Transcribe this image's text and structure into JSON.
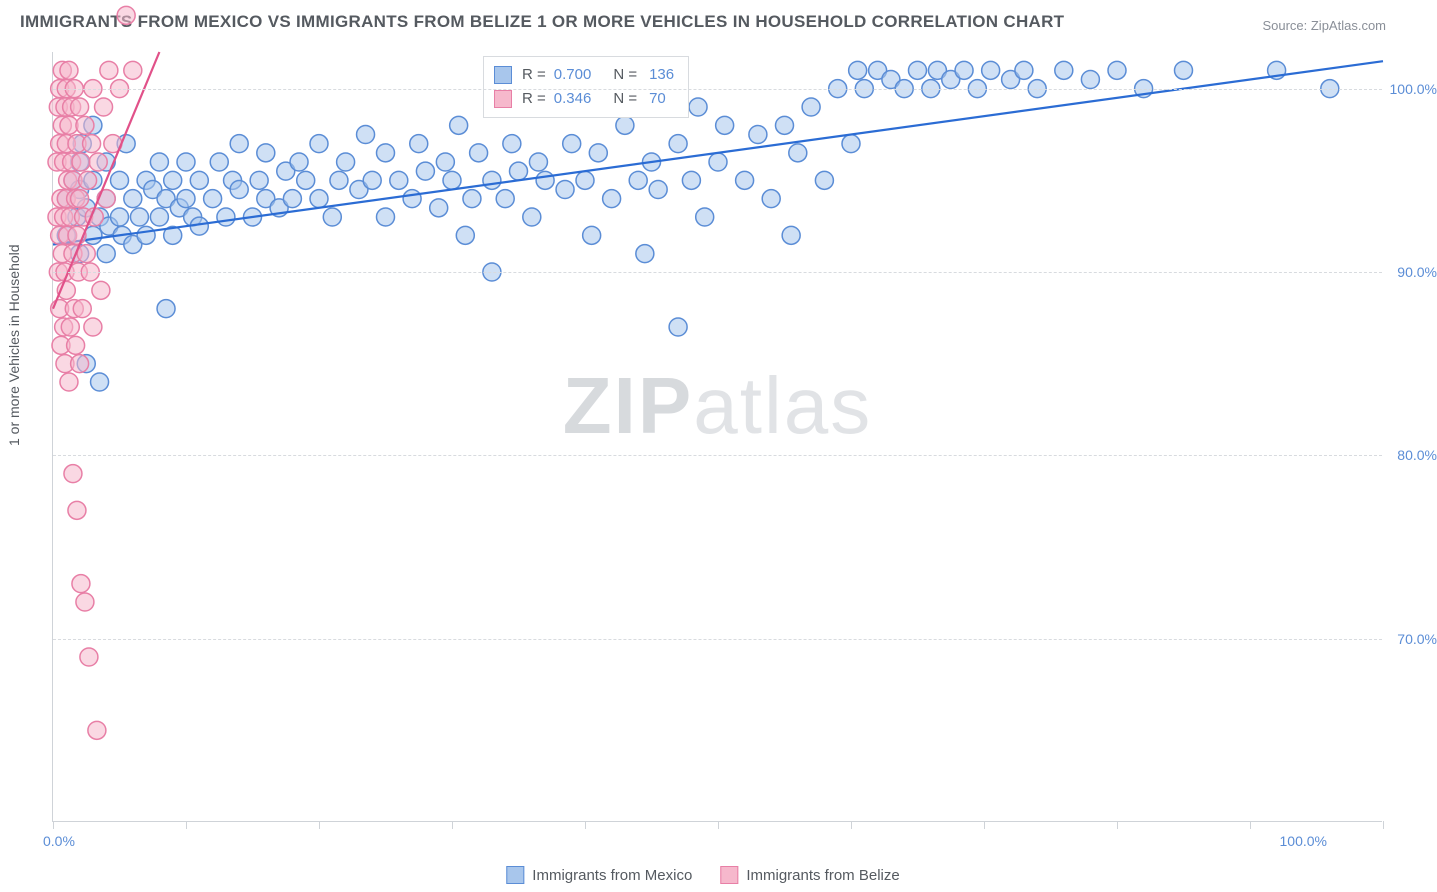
{
  "title": "IMMIGRANTS FROM MEXICO VS IMMIGRANTS FROM BELIZE 1 OR MORE VEHICLES IN HOUSEHOLD CORRELATION CHART",
  "source": "Source: ZipAtlas.com",
  "watermark_a": "ZIP",
  "watermark_b": "atlas",
  "chart": {
    "type": "scatter",
    "background_color": "#ffffff",
    "grid_color": "#d8dbdf",
    "axis_color": "#cfd3d8",
    "y_axis_title": "1 or more Vehicles in Household",
    "xlim": [
      0,
      100
    ],
    "ylim": [
      60,
      102
    ],
    "x_tick_positions": [
      0,
      10,
      20,
      30,
      40,
      50,
      60,
      70,
      80,
      90,
      100
    ],
    "x_labels": {
      "min": "0.0%",
      "max": "100.0%"
    },
    "y_ticks": [
      {
        "v": 70,
        "label": "70.0%"
      },
      {
        "v": 80,
        "label": "80.0%"
      },
      {
        "v": 90,
        "label": "90.0%"
      },
      {
        "v": 100,
        "label": "100.0%"
      }
    ],
    "marker_radius": 9,
    "marker_stroke_width": 1.5,
    "trend_line_width": 2.2,
    "series": [
      {
        "name": "Immigrants from Mexico",
        "fill": "#a8c6ec",
        "stroke": "#5b8dd6",
        "fill_opacity": 0.55,
        "r_value": "0.700",
        "n_value": "136",
        "trend": {
          "x1": 0,
          "y1": 91.5,
          "x2": 100,
          "y2": 101.5,
          "color": "#2b6cd4"
        },
        "points": [
          [
            1,
            92
          ],
          [
            1,
            94
          ],
          [
            1.5,
            95
          ],
          [
            1.8,
            93
          ],
          [
            2,
            91
          ],
          [
            2,
            94.5
          ],
          [
            2,
            96
          ],
          [
            2.2,
            97
          ],
          [
            2.5,
            93.5
          ],
          [
            2.5,
            85
          ],
          [
            3,
            92
          ],
          [
            3,
            95
          ],
          [
            3,
            98
          ],
          [
            3.5,
            84
          ],
          [
            3.5,
            93
          ],
          [
            4,
            91
          ],
          [
            4,
            94
          ],
          [
            4,
            96
          ],
          [
            4.2,
            92.5
          ],
          [
            5,
            93
          ],
          [
            5,
            95
          ],
          [
            5.2,
            92
          ],
          [
            5.5,
            97
          ],
          [
            6,
            94
          ],
          [
            6,
            91.5
          ],
          [
            6.5,
            93
          ],
          [
            7,
            95
          ],
          [
            7,
            92
          ],
          [
            7.5,
            94.5
          ],
          [
            8,
            93
          ],
          [
            8,
            96
          ],
          [
            8.5,
            88
          ],
          [
            8.5,
            94
          ],
          [
            9,
            92
          ],
          [
            9,
            95
          ],
          [
            9.5,
            93.5
          ],
          [
            10,
            94
          ],
          [
            10,
            96
          ],
          [
            10.5,
            93
          ],
          [
            11,
            95
          ],
          [
            11,
            92.5
          ],
          [
            12,
            94
          ],
          [
            12.5,
            96
          ],
          [
            13,
            93
          ],
          [
            13.5,
            95
          ],
          [
            14,
            94.5
          ],
          [
            14,
            97
          ],
          [
            15,
            93
          ],
          [
            15.5,
            95
          ],
          [
            16,
            94
          ],
          [
            16,
            96.5
          ],
          [
            17,
            93.5
          ],
          [
            17.5,
            95.5
          ],
          [
            18,
            94
          ],
          [
            18.5,
            96
          ],
          [
            19,
            95
          ],
          [
            20,
            94
          ],
          [
            20,
            97
          ],
          [
            21,
            93
          ],
          [
            21.5,
            95
          ],
          [
            22,
            96
          ],
          [
            23,
            94.5
          ],
          [
            23.5,
            97.5
          ],
          [
            24,
            95
          ],
          [
            25,
            93
          ],
          [
            25,
            96.5
          ],
          [
            26,
            95
          ],
          [
            27,
            94
          ],
          [
            27.5,
            97
          ],
          [
            28,
            95.5
          ],
          [
            29,
            93.5
          ],
          [
            29.5,
            96
          ],
          [
            30,
            95
          ],
          [
            30.5,
            98
          ],
          [
            31,
            92
          ],
          [
            31.5,
            94
          ],
          [
            32,
            96.5
          ],
          [
            33,
            95
          ],
          [
            33,
            90
          ],
          [
            34,
            94
          ],
          [
            34.5,
            97
          ],
          [
            35,
            95.5
          ],
          [
            36,
            93
          ],
          [
            36.5,
            96
          ],
          [
            37,
            95
          ],
          [
            38,
            99
          ],
          [
            38.5,
            94.5
          ],
          [
            39,
            97
          ],
          [
            40,
            95
          ],
          [
            40.5,
            92
          ],
          [
            41,
            96.5
          ],
          [
            42,
            94
          ],
          [
            43,
            98
          ],
          [
            44,
            95
          ],
          [
            44.5,
            91
          ],
          [
            45,
            96
          ],
          [
            45.5,
            94.5
          ],
          [
            47,
            97
          ],
          [
            47,
            87
          ],
          [
            48,
            95
          ],
          [
            48.5,
            99
          ],
          [
            49,
            93
          ],
          [
            50,
            96
          ],
          [
            50.5,
            98
          ],
          [
            52,
            95
          ],
          [
            53,
            97.5
          ],
          [
            54,
            94
          ],
          [
            55,
            98
          ],
          [
            55.5,
            92
          ],
          [
            56,
            96.5
          ],
          [
            57,
            99
          ],
          [
            58,
            95
          ],
          [
            59,
            100
          ],
          [
            60,
            97
          ],
          [
            60.5,
            101
          ],
          [
            61,
            100
          ],
          [
            62,
            101
          ],
          [
            63,
            100.5
          ],
          [
            64,
            100
          ],
          [
            65,
            101
          ],
          [
            66,
            100
          ],
          [
            66.5,
            101
          ],
          [
            67.5,
            100.5
          ],
          [
            68.5,
            101
          ],
          [
            69.5,
            100
          ],
          [
            70.5,
            101
          ],
          [
            72,
            100.5
          ],
          [
            73,
            101
          ],
          [
            74,
            100
          ],
          [
            76,
            101
          ],
          [
            78,
            100.5
          ],
          [
            80,
            101
          ],
          [
            82,
            100
          ],
          [
            85,
            101
          ],
          [
            92,
            101
          ],
          [
            96,
            100
          ]
        ]
      },
      {
        "name": "Immigrants from Belize",
        "fill": "#f6b8cc",
        "stroke": "#e87fa6",
        "fill_opacity": 0.55,
        "r_value": "0.346",
        "n_value": "70",
        "trend": {
          "x1": 0,
          "y1": 88,
          "x2": 8,
          "y2": 102,
          "color": "#e15189"
        },
        "points": [
          [
            0.3,
            93
          ],
          [
            0.3,
            96
          ],
          [
            0.4,
            90
          ],
          [
            0.4,
            99
          ],
          [
            0.5,
            88
          ],
          [
            0.5,
            92
          ],
          [
            0.5,
            97
          ],
          [
            0.5,
            100
          ],
          [
            0.6,
            86
          ],
          [
            0.6,
            94
          ],
          [
            0.7,
            91
          ],
          [
            0.7,
            98
          ],
          [
            0.7,
            101
          ],
          [
            0.8,
            87
          ],
          [
            0.8,
            93
          ],
          [
            0.8,
            96
          ],
          [
            0.9,
            85
          ],
          [
            0.9,
            90
          ],
          [
            0.9,
            99
          ],
          [
            1,
            89
          ],
          [
            1,
            94
          ],
          [
            1,
            97
          ],
          [
            1,
            100
          ],
          [
            1.1,
            92
          ],
          [
            1.1,
            95
          ],
          [
            1.2,
            84
          ],
          [
            1.2,
            98
          ],
          [
            1.2,
            101
          ],
          [
            1.3,
            87
          ],
          [
            1.3,
            93
          ],
          [
            1.4,
            96
          ],
          [
            1.4,
            99
          ],
          [
            1.5,
            79
          ],
          [
            1.5,
            91
          ],
          [
            1.5,
            95
          ],
          [
            1.6,
            88
          ],
          [
            1.6,
            100
          ],
          [
            1.7,
            86
          ],
          [
            1.7,
            94
          ],
          [
            1.8,
            77
          ],
          [
            1.8,
            92
          ],
          [
            1.8,
            97
          ],
          [
            1.9,
            90
          ],
          [
            2,
            85
          ],
          [
            2,
            94
          ],
          [
            2,
            99
          ],
          [
            2.1,
            73
          ],
          [
            2.1,
            96
          ],
          [
            2.2,
            88
          ],
          [
            2.3,
            93
          ],
          [
            2.4,
            72
          ],
          [
            2.4,
            98
          ],
          [
            2.5,
            91
          ],
          [
            2.6,
            95
          ],
          [
            2.7,
            69
          ],
          [
            2.8,
            90
          ],
          [
            2.9,
            97
          ],
          [
            3,
            87
          ],
          [
            3,
            100
          ],
          [
            3.1,
            93
          ],
          [
            3.3,
            65
          ],
          [
            3.4,
            96
          ],
          [
            3.6,
            89
          ],
          [
            3.8,
            99
          ],
          [
            4,
            94
          ],
          [
            4.2,
            101
          ],
          [
            4.5,
            97
          ],
          [
            5,
            100
          ],
          [
            5.5,
            104
          ],
          [
            6,
            101
          ]
        ]
      }
    ],
    "legend": {
      "r_label": "R =",
      "n_label": "N ="
    },
    "bottom_legend": [
      {
        "label": "Immigrants from Mexico",
        "fill": "#a8c6ec",
        "stroke": "#5b8dd6"
      },
      {
        "label": "Immigrants from Belize",
        "fill": "#f6b8cc",
        "stroke": "#e87fa6"
      }
    ]
  }
}
